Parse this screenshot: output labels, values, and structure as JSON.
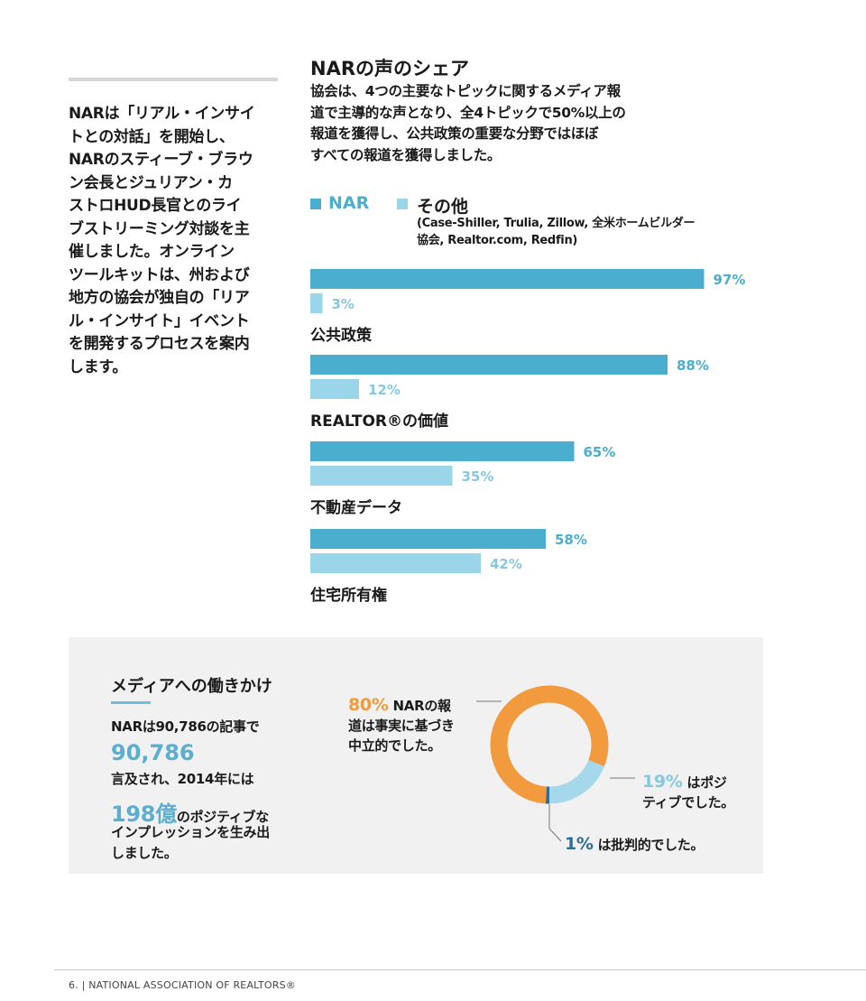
{
  "intro": {
    "lines": [
      "NARは「リアル・インサイ",
      "トとの対話」を開始し、",
      "NARのスティーブ・ブラウ",
      "ン会長とジュリアン・カ",
      "ストロHUD長官とのライ",
      "ブストリーミング対談を主",
      "催しました。オンライン",
      "ツールキットは、州および",
      "地方の協会が独自の「リア",
      "ル・インサイト」イベント",
      "を開発するプロセスを案内",
      "します。"
    ]
  },
  "chart_data": {
    "type": "bar",
    "orientation": "horizontal",
    "title": "NARの声のシェア",
    "subtitle_lines": [
      "協会は、4つの主要なトピックに関するメディア報",
      "道で主導的な声となり、全4トピックで50%以上の",
      "報道を獲得し、公共政策の重要な分野ではほぼ",
      "すべての報道を獲得しました。"
    ],
    "categories": [
      "公共政策",
      "REALTOR®の価値",
      "不動産データ",
      "住宅所有権"
    ],
    "series": [
      {
        "name": "NAR",
        "values": [
          97,
          88,
          65,
          58
        ],
        "color": "#4baece"
      },
      {
        "name": "その他",
        "values": [
          3,
          12,
          35,
          42
        ],
        "color": "#9bd5ea"
      }
    ],
    "value_labels": {
      "NAR": [
        "97%",
        "88%",
        "65%",
        "58%"
      ],
      "その他": [
        "3%",
        "12%",
        "35%",
        "42%"
      ]
    },
    "legend_note_lines": [
      "(Case-Shiller, Trulia, Zillow, 全米ホームビルダー",
      "協会, Realtor.com, Redfin)"
    ],
    "xlim": [
      0,
      100
    ],
    "grid": false,
    "legend_position": "top-left"
  },
  "media": {
    "title": "メディアへの働きかけ",
    "line1": "NARは90,786の記事で",
    "big1": "90,786",
    "line2": "言及され、2014年には",
    "big2": "198億",
    "line3_suffix": "のポジティブな",
    "line4": "インプレッションを生み出",
    "line5": "しました。",
    "donut": {
      "type": "pie",
      "slices": [
        {
          "name": "neutral",
          "value": 80,
          "color": "#f19a3e"
        },
        {
          "name": "positive",
          "value": 19,
          "color": "#a6d8ec"
        },
        {
          "name": "critical",
          "value": 1,
          "color": "#2f6d96"
        }
      ],
      "neutral_pct": "80%",
      "neutral_text_lines": [
        "NARの報",
        "道は事実に基づき",
        "中立的でした。"
      ],
      "positive_pct": "19%",
      "positive_text_lines": [
        "はポジ",
        "ティブでした。"
      ],
      "critical_pct": "1%",
      "critical_text": "は批判的でした。"
    }
  },
  "footer": {
    "text": "6.  |  NATIONAL ASSOCIATION OF REALTORS®"
  },
  "colors": {
    "nar": "#4baece",
    "other": "#9bd5ea",
    "orange": "#f19a3e",
    "dark_blue": "#2f6d96",
    "light_blue_text": "#86c8e2"
  }
}
